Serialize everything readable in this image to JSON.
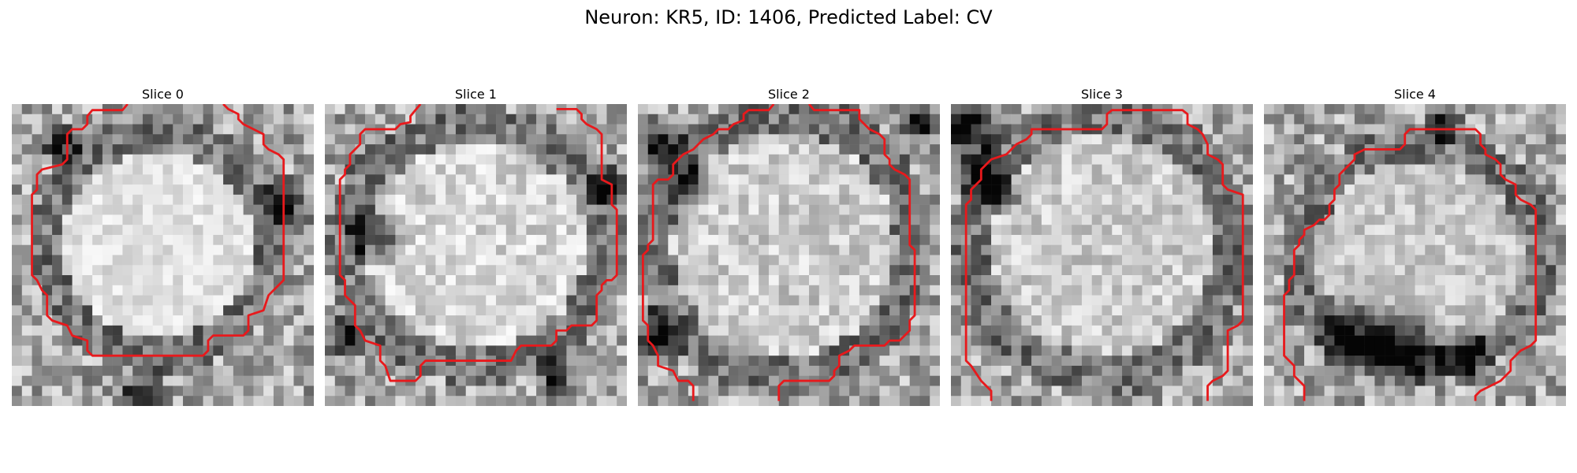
{
  "figure": {
    "title": "Neuron: KR5, ID: 1406, Predicted Label: CV"
  },
  "panels": [
    {
      "title": "Slice 0"
    },
    {
      "title": "Slice 1"
    },
    {
      "title": "Slice 2"
    },
    {
      "title": "Slice 3"
    },
    {
      "title": "Slice 4"
    }
  ],
  "colors": {
    "contour": "#e8191c",
    "background": "#ffffff"
  }
}
